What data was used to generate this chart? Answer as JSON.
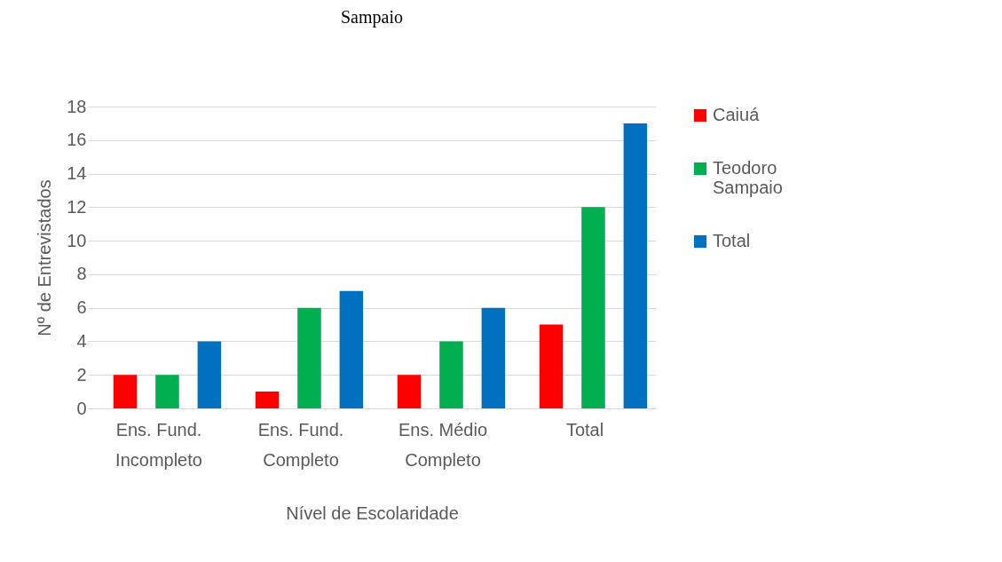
{
  "chart_data": {
    "type": "bar",
    "title": "Sampaio",
    "xlabel": "Nível de Escolaridade",
    "ylabel": "Nº de Entrevistados",
    "categories": [
      "Ens. Fund. Incompleto",
      "Ens. Fund. Completo",
      "Ens. Médio Completo",
      "Total"
    ],
    "series": [
      {
        "name": "Caiuá",
        "color": "#ff0000",
        "values": [
          2,
          1,
          2,
          5
        ]
      },
      {
        "name": "Teodoro Sampaio",
        "color": "#00b050",
        "values": [
          2,
          6,
          4,
          12
        ]
      },
      {
        "name": "Total",
        "color": "#0070c0",
        "values": [
          4,
          7,
          6,
          17
        ]
      }
    ],
    "ylim": [
      0,
      18
    ],
    "yticks": [
      0,
      2,
      4,
      6,
      8,
      10,
      12,
      14,
      16,
      18
    ],
    "grid": "y",
    "legend": "right"
  }
}
